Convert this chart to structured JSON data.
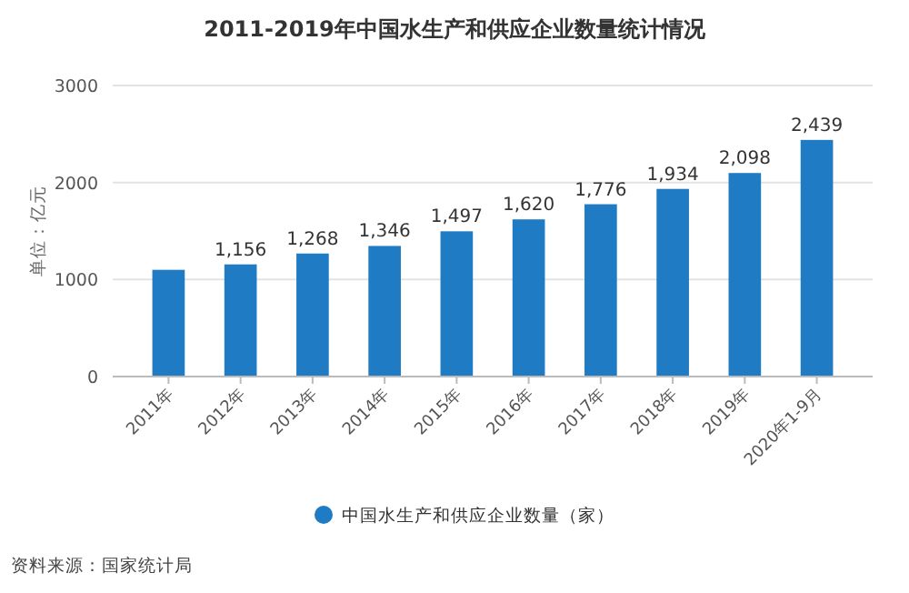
{
  "chart_data": {
    "type": "bar",
    "title": "2011-2019年中国水生产和供应企业数量统计情况",
    "ylabel": "单位：亿元",
    "categories": [
      "2011年",
      "2012年",
      "2013年",
      "2014年",
      "2015年",
      "2016年",
      "2017年",
      "2018年",
      "2019年",
      "2020年1-9月"
    ],
    "series": [
      {
        "name": "中国水生产和供应企业数量（家）",
        "color": "#1f7bc4",
        "values": [
          1100,
          1156,
          1268,
          1346,
          1497,
          1620,
          1776,
          1934,
          2098,
          2439
        ],
        "value_labels": [
          null,
          "1,156",
          "1,268",
          "1,346",
          "1,497",
          "1,620",
          "1,776",
          "1,934",
          "2,098",
          "2,439"
        ]
      }
    ],
    "ylim": [
      0,
      3000
    ],
    "yticks": [
      0,
      1000,
      2000,
      3000
    ],
    "grid": "y",
    "legend": "bottom",
    "annotations": [
      "资料来源：国家统计局"
    ]
  }
}
